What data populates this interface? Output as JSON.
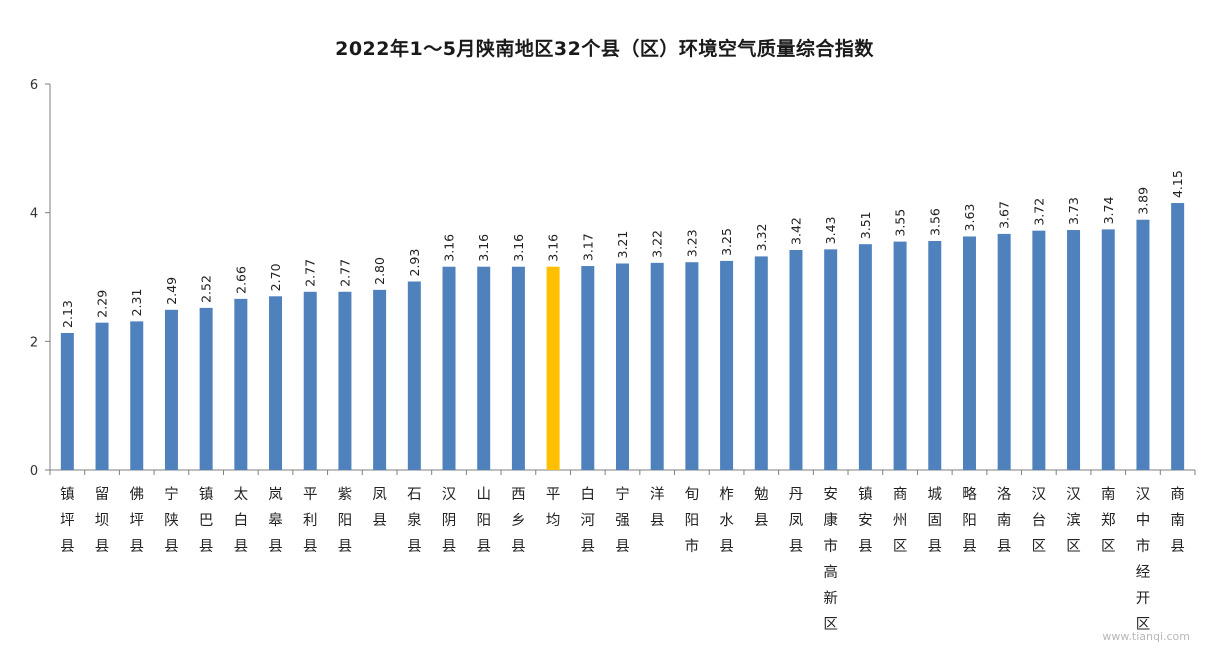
{
  "chart_data": {
    "type": "bar",
    "title": "2022年1～5月陕南地区32个县（区）环境空气质量综合指数",
    "xlabel": "",
    "ylabel": "",
    "ylim": [
      0,
      6
    ],
    "yticks": [
      "0",
      "2",
      "4",
      "6"
    ],
    "grid": false,
    "legend": "none",
    "colors": {
      "default": "#4f81bd",
      "highlight": "#ffc000"
    },
    "highlight_category": "平均",
    "categories": [
      "镇坪县",
      "留坝县",
      "佛坪县",
      "宁陕县",
      "镇巴县",
      "太白县",
      "岚皋县",
      "平利县",
      "紫阳县",
      "凤县",
      "石泉县",
      "汉阴县",
      "山阳县",
      "西乡县",
      "平均",
      "白河县",
      "宁强县",
      "洋县",
      "旬阳市",
      "柞水县",
      "勉县",
      "丹凤县",
      "安康市高新区",
      "镇安县",
      "商州区",
      "城固县",
      "略阳县",
      "洛南县",
      "汉台区",
      "汉滨区",
      "南郑区",
      "汉中市经开区",
      "商南县"
    ],
    "values": [
      2.13,
      2.29,
      2.31,
      2.49,
      2.52,
      2.66,
      2.7,
      2.77,
      2.77,
      2.8,
      2.93,
      3.16,
      3.16,
      3.16,
      3.16,
      3.17,
      3.21,
      3.22,
      3.23,
      3.25,
      3.32,
      3.42,
      3.43,
      3.51,
      3.55,
      3.56,
      3.63,
      3.67,
      3.72,
      3.73,
      3.74,
      3.89,
      4.15
    ],
    "value_labels": [
      "2.13",
      "2.29",
      "2.31",
      "2.49",
      "2.52",
      "2.66",
      "2.70",
      "2.77",
      "2.77",
      "2.80",
      "2.93",
      "3.16",
      "3.16",
      "3.16",
      "3.16",
      "3.17",
      "3.21",
      "3.22",
      "3.23",
      "3.25",
      "3.32",
      "3.42",
      "3.43",
      "3.51",
      "3.55",
      "3.56",
      "3.63",
      "3.67",
      "3.72",
      "3.73",
      "3.74",
      "3.89",
      "4.15"
    ]
  },
  "watermark": "www.tianqi.com"
}
